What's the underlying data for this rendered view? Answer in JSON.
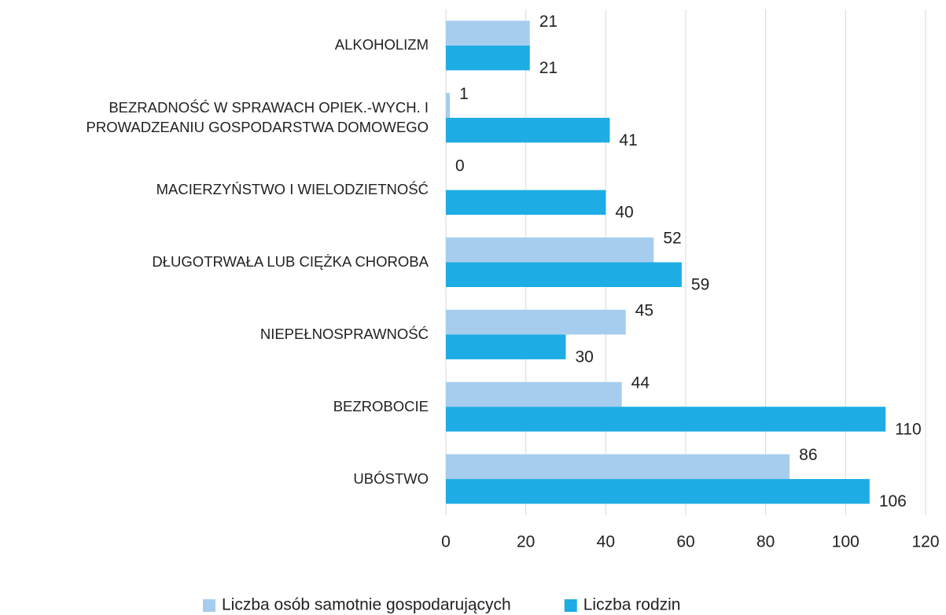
{
  "chart_data": {
    "type": "barh",
    "categories": [
      "ALKOHOLIZM",
      "BEZRADNOŚĆ W SPRAWACH OPIEK.-WYCH. I PROWADZEANIU GOSPODARSTWA DOMOWEGO",
      "MACIERZYŃSTWO I WIELODZIETNOŚĆ",
      "DŁUGOTRWAŁA LUB CIĘŻKA CHOROBA",
      "NIEPEŁNOSPRAWNOŚĆ",
      "BEZROBOCIE",
      "UBÓSTWO"
    ],
    "series": [
      {
        "name": "Liczba osób samotnie gospodarujących",
        "color": "#a6cdee",
        "values": [
          21,
          1,
          0,
          52,
          45,
          44,
          86
        ]
      },
      {
        "name": "Liczba rodzin",
        "color": "#1eace4",
        "values": [
          21,
          41,
          40,
          59,
          30,
          110,
          106
        ]
      }
    ],
    "xlim": [
      0,
      120
    ],
    "xticks": [
      0,
      20,
      40,
      60,
      80,
      100,
      120
    ],
    "grid": true,
    "legend": "bottom"
  }
}
